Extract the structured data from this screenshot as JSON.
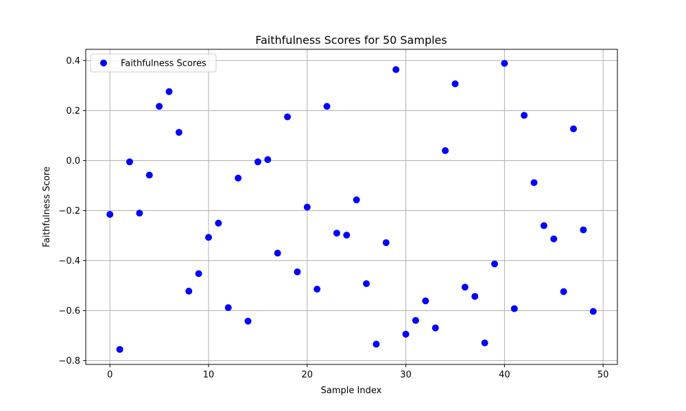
{
  "chart_data": {
    "type": "scatter",
    "title": "Faithfulness Scores for 50 Samples",
    "xlabel": "Sample Index",
    "ylabel": "Faithfulness Score",
    "xlim": [
      -2.45,
      51.45
    ],
    "ylim": [
      -0.815,
      0.445
    ],
    "xticks": [
      0,
      10,
      20,
      30,
      40,
      50
    ],
    "yticks": [
      -0.8,
      -0.6,
      -0.4,
      -0.2,
      0.0,
      0.2,
      0.4
    ],
    "xtick_labels": [
      "0",
      "10",
      "20",
      "30",
      "40",
      "50"
    ],
    "ytick_labels": [
      "−0.8",
      "−0.6",
      "−0.4",
      "−0.2",
      "0.0",
      "0.2",
      "0.4"
    ],
    "grid": true,
    "legend_position": "top-left",
    "marker_color": "#0000ff",
    "series": [
      {
        "name": "Faithfulness Scores",
        "x": [
          0,
          1,
          2,
          3,
          4,
          5,
          6,
          7,
          8,
          9,
          10,
          11,
          12,
          13,
          14,
          15,
          16,
          17,
          18,
          19,
          20,
          21,
          22,
          23,
          24,
          25,
          26,
          27,
          28,
          29,
          30,
          31,
          32,
          33,
          34,
          35,
          36,
          37,
          38,
          39,
          40,
          41,
          42,
          43,
          44,
          45,
          46,
          47,
          48,
          49
        ],
        "y": [
          -0.215,
          -0.755,
          -0.005,
          -0.21,
          -0.058,
          0.217,
          0.276,
          0.113,
          -0.522,
          -0.452,
          -0.307,
          -0.25,
          -0.588,
          -0.07,
          -0.642,
          -0.005,
          0.004,
          -0.37,
          0.175,
          -0.445,
          -0.186,
          -0.514,
          0.217,
          -0.29,
          -0.298,
          -0.157,
          -0.492,
          -0.734,
          -0.328,
          0.364,
          -0.694,
          -0.639,
          -0.561,
          -0.669,
          0.04,
          0.307,
          -0.506,
          -0.543,
          -0.729,
          -0.413,
          0.389,
          -0.592,
          0.181,
          -0.088,
          -0.26,
          -0.313,
          -0.524,
          0.127,
          -0.277,
          -0.603
        ]
      }
    ]
  }
}
